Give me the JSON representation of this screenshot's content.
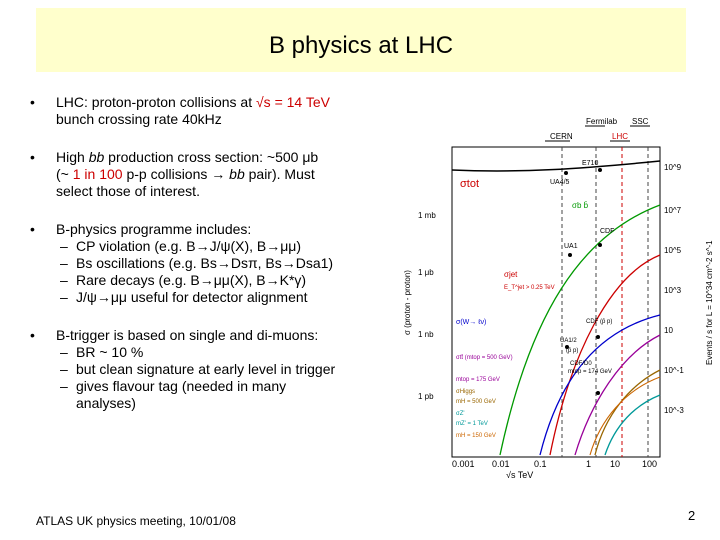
{
  "title": "B physics at LHC",
  "bullets": {
    "b1_line1_prefix": "LHC: proton-proton collisions at ",
    "b1_line1_value": "√s = 14 TeV",
    "b1_line2": "bunch crossing rate 40kHz",
    "b2_line1_a": "High ",
    "b2_line1_bb": "bb",
    "b2_line1_b": " production cross section: ~500 μb",
    "b2_line2_a": "(~ ",
    "b2_line2_hl": "1 in 100",
    "b2_line2_b": " p-p collisions → ",
    "b2_line2_bb": "bb",
    "b2_line2_c": " pair). Must",
    "b2_line3": "select those of interest.",
    "b3_intro": "B-physics programme includes:",
    "b3_items": [
      "CP violation (e.g. B→J/ψ(X), B→μμ)",
      "Bs oscillations (e.g. Bs→Dsπ, Bs→Dsa1)",
      "Rare decays (e.g. B→μμ(X), B→K*γ)",
      "J/ψ→μμ useful for detector alignment"
    ],
    "b4_intro": "B-trigger is based on single and di-muons:",
    "b4_items": [
      "BR ~ 10 %",
      "but clean signature at early level in trigger",
      "gives flavour tag (needed in many"
    ],
    "b4_item3_cont": "analyses)"
  },
  "figure": {
    "top_labels": [
      "Fermilab",
      "SSC",
      "CERN",
      "LHC"
    ],
    "curve_labels": {
      "sigma_tot": "σtot",
      "e710": "E710",
      "ua45": "UA4/5",
      "sigma_bb": "σb b̄",
      "cdf": "CDF",
      "ua1": "UA1",
      "sigma_jet": "σjet",
      "et_jet": "E_T^jet > 0.25 TeV",
      "sigma_w": "σ(W→ ℓν)",
      "cdf_pp": "CDF (p̄ p)",
      "ua12": "UA1/2",
      "pp": "(p̄ p)",
      "sigma_tt": "σtt̄ (mtop = 500 GeV)",
      "mtop175": "mtop = 175 GeV",
      "mtop_label": "mtop = 174 GeV",
      "cdf_d0": "CDF/D0",
      "sigma_higgs": "σHiggs",
      "mh500": "mH = 500 GeV",
      "sigma_zprime": "σZ'",
      "mz1": "mZ' = 1 TeV",
      "mh150": "mH = 150 GeV"
    },
    "left_ticks": [
      "1 mb",
      "1 μb",
      "1 nb",
      "1 pb"
    ],
    "right_ticks": [
      "10^9",
      "10^7",
      "10^5",
      "10^3",
      "10",
      "10^-1",
      "10^-3"
    ],
    "x_ticks": [
      "0.001",
      "0.01",
      "0.1",
      "1",
      "10",
      "100"
    ],
    "x_label": "√s  TeV",
    "y_left_label": "σ (proton - proton)",
    "y_right_label": "Events / s for L = 10^34 cm^-2 s^-1"
  },
  "footer": "ATLAS UK physics meeting, 10/01/08",
  "page_number": "2"
}
